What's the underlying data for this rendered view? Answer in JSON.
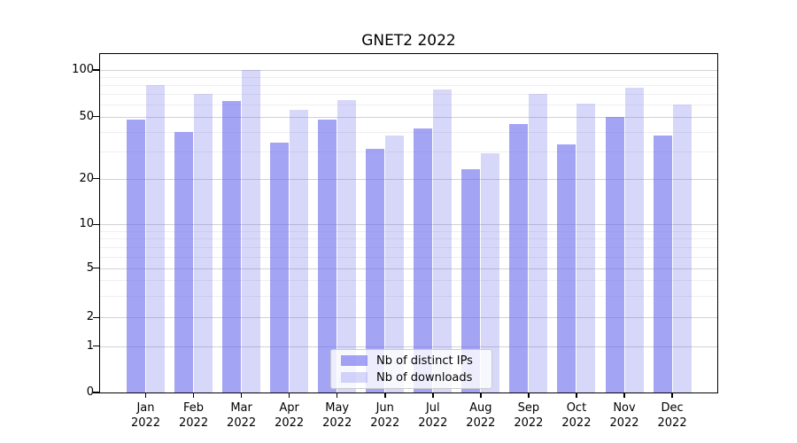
{
  "chart_data": {
    "type": "bar",
    "title": "GNET2 2022",
    "categories": [
      {
        "month": "Jan",
        "year": "2022"
      },
      {
        "month": "Feb",
        "year": "2022"
      },
      {
        "month": "Mar",
        "year": "2022"
      },
      {
        "month": "Apr",
        "year": "2022"
      },
      {
        "month": "May",
        "year": "2022"
      },
      {
        "month": "Jun",
        "year": "2022"
      },
      {
        "month": "Jul",
        "year": "2022"
      },
      {
        "month": "Aug",
        "year": "2022"
      },
      {
        "month": "Sep",
        "year": "2022"
      },
      {
        "month": "Oct",
        "year": "2022"
      },
      {
        "month": "Nov",
        "year": "2022"
      },
      {
        "month": "Dec",
        "year": "2022"
      }
    ],
    "series": [
      {
        "name": "Nb of distinct IPs",
        "color": "rgba(108,108,238,0.62)",
        "color_hex": "#a4a4f4",
        "values": [
          48,
          40,
          63,
          34,
          48,
          31,
          42,
          23,
          45,
          33,
          50,
          38
        ]
      },
      {
        "name": "Nb of downloads",
        "color": "rgba(108,108,238,0.27)",
        "color_hex": "#d7d7fa",
        "values": [
          80,
          70,
          100,
          55,
          64,
          38,
          75,
          29,
          70,
          61,
          77,
          60
        ]
      }
    ],
    "y_axis": {
      "scale": "symlog",
      "ticks": [
        0,
        1,
        2,
        5,
        10,
        20,
        50,
        100
      ],
      "minor_ticks": [
        3,
        4,
        6,
        7,
        8,
        9,
        30,
        40,
        60,
        70,
        80,
        90
      ],
      "range": [
        0,
        110
      ]
    },
    "x_axis": {
      "label": ""
    },
    "grid": true,
    "legend_position": "lower center"
  }
}
